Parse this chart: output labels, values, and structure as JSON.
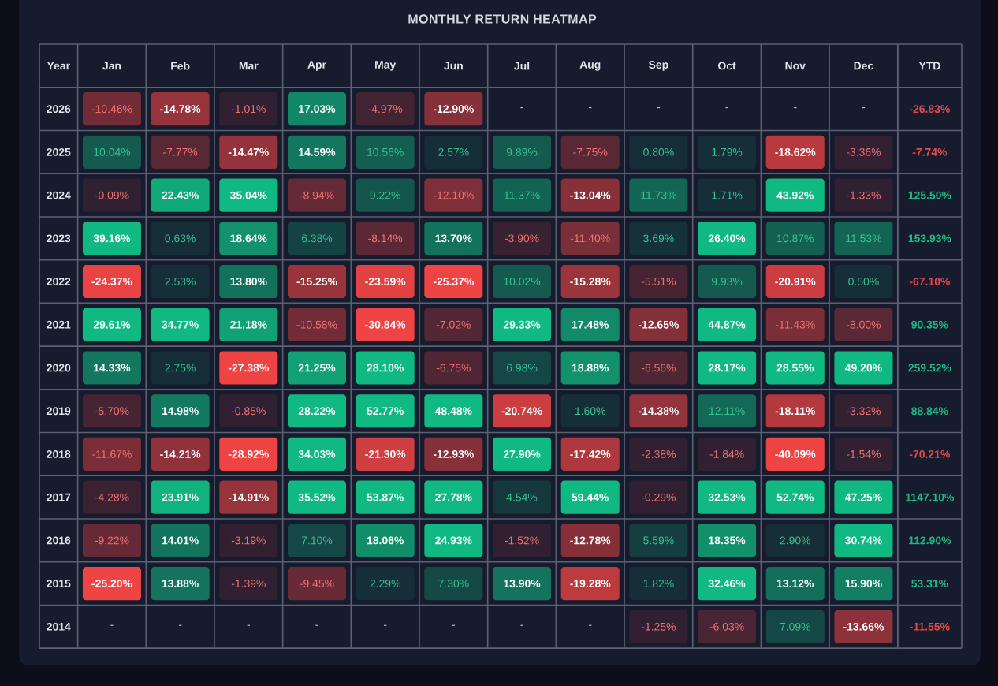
{
  "chart_data": [
    {
      "type": "heatmap",
      "title": "MONTHLY RETURN HEATMAP",
      "ylabel": "Year",
      "categories": [
        "Jan",
        "Feb",
        "Mar",
        "Apr",
        "May",
        "Jun",
        "Jul",
        "Aug",
        "Sep",
        "Oct",
        "Nov",
        "Dec"
      ],
      "y_categories": [
        "2026",
        "2025",
        "2024",
        "2023",
        "2022",
        "2021",
        "2020",
        "2019",
        "2018",
        "2017",
        "2016",
        "2015",
        "2014"
      ],
      "cells": [
        [
          -10.46,
          -14.78,
          -1.01,
          17.03,
          -4.97,
          -12.9,
          null,
          null,
          null,
          null,
          null,
          null
        ],
        [
          10.04,
          -7.77,
          -14.47,
          14.59,
          10.56,
          2.57,
          9.89,
          -7.75,
          0.8,
          1.79,
          -18.62,
          -3.36
        ],
        [
          -0.09,
          22.43,
          35.04,
          -8.94,
          9.22,
          -12.1,
          11.37,
          -13.04,
          11.73,
          1.71,
          43.92,
          -1.33
        ],
        [
          39.16,
          0.63,
          18.64,
          6.38,
          -8.14,
          13.7,
          -3.9,
          -11.4,
          3.69,
          26.4,
          10.87,
          11.53
        ],
        [
          -24.37,
          2.53,
          13.8,
          -15.25,
          -23.59,
          -25.37,
          10.02,
          -15.28,
          -5.51,
          9.93,
          -20.91,
          0.5
        ],
        [
          29.61,
          34.77,
          21.18,
          -10.58,
          -30.84,
          -7.02,
          29.33,
          17.48,
          -12.65,
          44.87,
          -11.43,
          -8.0
        ],
        [
          14.33,
          2.75,
          -27.38,
          21.25,
          28.1,
          -6.75,
          6.98,
          18.88,
          -6.56,
          28.17,
          28.55,
          49.2
        ],
        [
          -5.7,
          14.98,
          -0.85,
          28.22,
          52.77,
          48.48,
          -20.74,
          1.6,
          -14.38,
          12.11,
          -18.11,
          -3.32
        ],
        [
          -11.67,
          -14.21,
          -28.92,
          34.03,
          -21.3,
          -12.93,
          27.9,
          -17.42,
          -2.38,
          -1.84,
          -40.09,
          -1.54
        ],
        [
          -4.28,
          23.91,
          -14.91,
          35.52,
          53.87,
          27.78,
          4.54,
          59.44,
          -0.29,
          32.53,
          52.74,
          47.25
        ],
        [
          -9.22,
          14.01,
          -3.19,
          7.1,
          18.06,
          24.93,
          -1.52,
          -12.78,
          5.59,
          18.35,
          2.9,
          30.74
        ],
        [
          -25.2,
          13.88,
          -1.39,
          -9.45,
          2.29,
          7.3,
          13.9,
          -19.28,
          1.82,
          32.46,
          13.12,
          15.9
        ],
        [
          null,
          null,
          null,
          null,
          null,
          null,
          null,
          null,
          -1.25,
          -6.03,
          7.09,
          -13.66
        ]
      ],
      "cell_labels": [
        [
          "-10.46%",
          "-14.78%",
          "-1.01%",
          "17.03%",
          "-4.97%",
          "-12.90%",
          "-",
          "-",
          "-",
          "-",
          "-",
          "-"
        ],
        [
          "10.04%",
          "-7.77%",
          "-14.47%",
          "14.59%",
          "10.56%",
          "2.57%",
          "9.89%",
          "-7.75%",
          "0.80%",
          "1.79%",
          "-18.62%",
          "-3.36%"
        ],
        [
          "-0.09%",
          "22.43%",
          "35.04%",
          "-8.94%",
          "9.22%",
          "-12.10%",
          "11.37%",
          "-13.04%",
          "11.73%",
          "1.71%",
          "43.92%",
          "-1.33%"
        ],
        [
          "39.16%",
          "0.63%",
          "18.64%",
          "6.38%",
          "-8.14%",
          "13.70%",
          "-3.90%",
          "-11.40%",
          "3.69%",
          "26.40%",
          "10.87%",
          "11.53%"
        ],
        [
          "-24.37%",
          "2.53%",
          "13.80%",
          "-15.25%",
          "-23.59%",
          "-25.37%",
          "10.02%",
          "-15.28%",
          "-5.51%",
          "9.93%",
          "-20.91%",
          "0.50%"
        ],
        [
          "29.61%",
          "34.77%",
          "21.18%",
          "-10.58%",
          "-30.84%",
          "-7.02%",
          "29.33%",
          "17.48%",
          "-12.65%",
          "44.87%",
          "-11.43%",
          "-8.00%"
        ],
        [
          "14.33%",
          "2.75%",
          "-27.38%",
          "21.25%",
          "28.10%",
          "-6.75%",
          "6.98%",
          "18.88%",
          "-6.56%",
          "28.17%",
          "28.55%",
          "49.20%"
        ],
        [
          "-5.70%",
          "14.98%",
          "-0.85%",
          "28.22%",
          "52.77%",
          "48.48%",
          "-20.74%",
          "1.60%",
          "-14.38%",
          "12.11%",
          "-18.11%",
          "-3.32%"
        ],
        [
          "-11.67%",
          "-14.21%",
          "-28.92%",
          "34.03%",
          "-21.30%",
          "-12.93%",
          "27.90%",
          "-17.42%",
          "-2.38%",
          "-1.84%",
          "-40.09%",
          "-1.54%"
        ],
        [
          "-4.28%",
          "23.91%",
          "-14.91%",
          "35.52%",
          "53.87%",
          "27.78%",
          "4.54%",
          "59.44%",
          "-0.29%",
          "32.53%",
          "52.74%",
          "47.25%"
        ],
        [
          "-9.22%",
          "14.01%",
          "-3.19%",
          "7.10%",
          "18.06%",
          "24.93%",
          "-1.52%",
          "-12.78%",
          "5.59%",
          "18.35%",
          "2.90%",
          "30.74%"
        ],
        [
          "-25.20%",
          "13.88%",
          "-1.39%",
          "-9.45%",
          "2.29%",
          "7.30%",
          "13.90%",
          "-19.28%",
          "1.82%",
          "32.46%",
          "13.12%",
          "15.90%"
        ],
        [
          "-",
          "-",
          "-",
          "-",
          "-",
          "-",
          "-",
          "-",
          "-1.25%",
          "-6.03%",
          "7.09%",
          "-13.66%"
        ]
      ],
      "grid": true
    },
    {
      "type": "heatmap",
      "categories": [
        "YTD"
      ],
      "y_categories": [
        "2026",
        "2025",
        "2024",
        "2023",
        "2022",
        "2021",
        "2020",
        "2019",
        "2018",
        "2017",
        "2016",
        "2015",
        "2014"
      ],
      "cells": [
        [
          -26.83
        ],
        [
          -7.74
        ],
        [
          125.5
        ],
        [
          153.93
        ],
        [
          -67.1
        ],
        [
          90.35
        ],
        [
          259.52
        ],
        [
          88.84
        ],
        [
          -70.21
        ],
        [
          1147.1
        ],
        [
          112.9
        ],
        [
          53.31
        ],
        [
          -11.55
        ]
      ],
      "cell_labels": [
        [
          "-26.83%"
        ],
        [
          "-7.74%"
        ],
        [
          "125.50%"
        ],
        [
          "153.93%"
        ],
        [
          "-67.10%"
        ],
        [
          "90.35%"
        ],
        [
          "259.52%"
        ],
        [
          "88.84%"
        ],
        [
          "-70.21%"
        ],
        [
          "1147.10%"
        ],
        [
          "112.90%"
        ],
        [
          "53.31%"
        ],
        [
          "-11.55%"
        ]
      ],
      "tick_labels": "x",
      "grid": true
    }
  ]
}
